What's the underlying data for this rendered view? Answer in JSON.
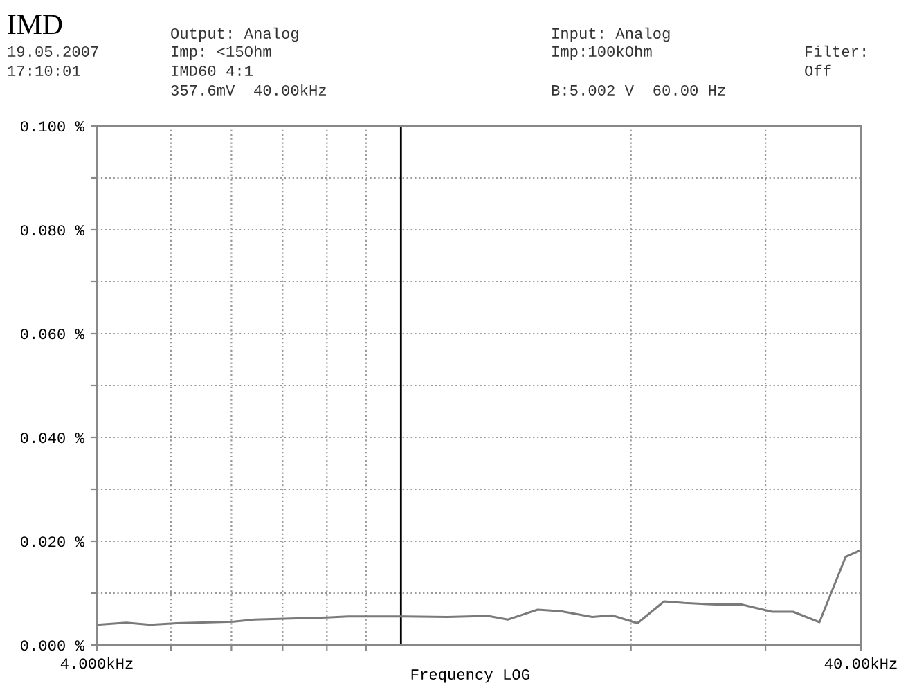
{
  "chart_data": {
    "type": "line",
    "title": "IMD",
    "xlabel": "Frequency LOG",
    "log": "x",
    "annotations": [
      "19.05.2007",
      "17:10:01",
      "Output: Analog",
      "Imp: <15Ohm",
      "IMD60 4:1",
      "357.6mV  40.00kHz",
      "Input: Analog",
      "Imp:100kOhm",
      "B:5.002 V  60.00 Hz",
      "Filter:",
      "Off"
    ],
    "x": [
      4,
      4.37,
      4.7,
      5.09,
      6.04,
      6.43,
      7.17,
      8,
      8.52,
      10.1,
      11.5,
      13,
      13.8,
      15.1,
      16.2,
      17.8,
      18.9,
      20.4,
      22.1,
      23.5,
      25.8,
      27.9,
      30.6,
      32.6,
      35.3,
      38.2,
      40
    ],
    "series": [
      {
        "color": "#7a7a7a",
        "values": [
          0.0039,
          0.0043,
          0.0039,
          0.0042,
          0.0045,
          0.0049,
          0.0051,
          0.0053,
          0.0055,
          0.0055,
          0.0054,
          0.0056,
          0.0049,
          0.0068,
          0.0065,
          0.0054,
          0.0057,
          0.0042,
          0.0084,
          0.0081,
          0.0078,
          0.0078,
          0.0064,
          0.0064,
          0.0044,
          0.017,
          0.0183
        ]
      }
    ],
    "xlim": [
      4,
      40
    ],
    "xticks": [
      {
        "value": 4,
        "label": "4.000kHz"
      },
      {
        "value": 5,
        "label": null
      },
      {
        "value": 6,
        "label": null
      },
      {
        "value": 7,
        "label": null
      },
      {
        "value": 8,
        "label": null
      },
      {
        "value": 9,
        "label": null
      },
      {
        "value": 20,
        "label": null
      },
      {
        "value": 30,
        "label": null
      },
      {
        "value": 40,
        "label": "40.00kHz"
      }
    ],
    "ylim": [
      0,
      0.1
    ],
    "yticks": [
      {
        "value": 0,
        "label": "0.000 %"
      },
      {
        "value": 0.01,
        "label": null
      },
      {
        "value": 0.02,
        "label": "0.020 %"
      },
      {
        "value": 0.03,
        "label": null
      },
      {
        "value": 0.04,
        "label": "0.040 %"
      },
      {
        "value": 0.05,
        "label": null
      },
      {
        "value": 0.06,
        "label": "0.060 %"
      },
      {
        "value": 0.07,
        "label": null
      },
      {
        "value": 0.08,
        "label": "0.080 %"
      },
      {
        "value": 0.09,
        "label": null
      },
      {
        "value": 0.1,
        "label": "0.100 %"
      }
    ],
    "grid": true,
    "line_style": "solid",
    "marker": "none",
    "ref_lines": [
      {
        "axis": "x",
        "value": 10,
        "color": "#000000"
      }
    ]
  }
}
